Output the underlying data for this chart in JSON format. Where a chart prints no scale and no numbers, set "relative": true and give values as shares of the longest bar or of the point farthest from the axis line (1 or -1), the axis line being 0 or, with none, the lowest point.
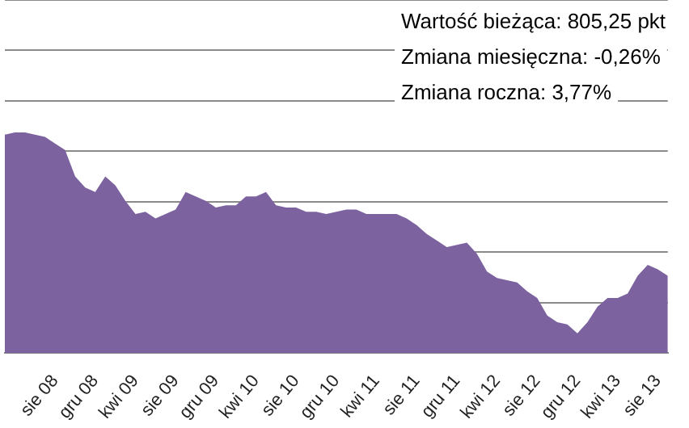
{
  "chart_data": {
    "type": "area",
    "relative": true,
    "grid": true,
    "color": "#7d62a0",
    "categories": [
      null,
      null,
      null,
      null,
      null,
      "sie 08",
      null,
      null,
      null,
      "gru 08",
      null,
      null,
      null,
      "kwi 09",
      null,
      null,
      null,
      "sie 09",
      null,
      null,
      null,
      "gru 09",
      null,
      null,
      null,
      "kwi 10",
      null,
      null,
      null,
      "sie 10",
      null,
      null,
      null,
      "gru 10",
      null,
      null,
      null,
      "kwi 11",
      null,
      null,
      null,
      "sie 11",
      null,
      null,
      null,
      "gru 11",
      null,
      null,
      null,
      "kwi 12",
      null,
      null,
      null,
      "sie 12",
      null,
      null,
      null,
      "gru 12",
      null,
      null,
      null,
      "kwi 13",
      null,
      null,
      null,
      "sie 13",
      null
    ],
    "values": [
      0.99,
      1,
      1,
      0.99,
      0.98,
      0.95,
      0.92,
      0.8,
      0.75,
      0.73,
      0.8,
      0.76,
      0.69,
      0.63,
      0.64,
      0.61,
      0.63,
      0.65,
      0.73,
      0.71,
      0.69,
      0.66,
      0.67,
      0.67,
      0.71,
      0.71,
      0.73,
      0.67,
      0.66,
      0.66,
      0.64,
      0.64,
      0.63,
      0.64,
      0.65,
      0.65,
      0.63,
      0.63,
      0.63,
      0.63,
      0.61,
      0.58,
      0.54,
      0.51,
      0.48,
      0.49,
      0.5,
      0.45,
      0.37,
      0.34,
      0.33,
      0.32,
      0.28,
      0.25,
      0.17,
      0.14,
      0.13,
      0.09,
      0.14,
      0.21,
      0.25,
      0.25,
      0.27,
      0.35,
      0.4,
      0.38,
      0.35
    ],
    "annotations": [
      "Wartość bieżąca: 805,25 pkt",
      "Zmiana miesięczna: -0,26%",
      "Zmiana roczna: 3,77%"
    ]
  }
}
